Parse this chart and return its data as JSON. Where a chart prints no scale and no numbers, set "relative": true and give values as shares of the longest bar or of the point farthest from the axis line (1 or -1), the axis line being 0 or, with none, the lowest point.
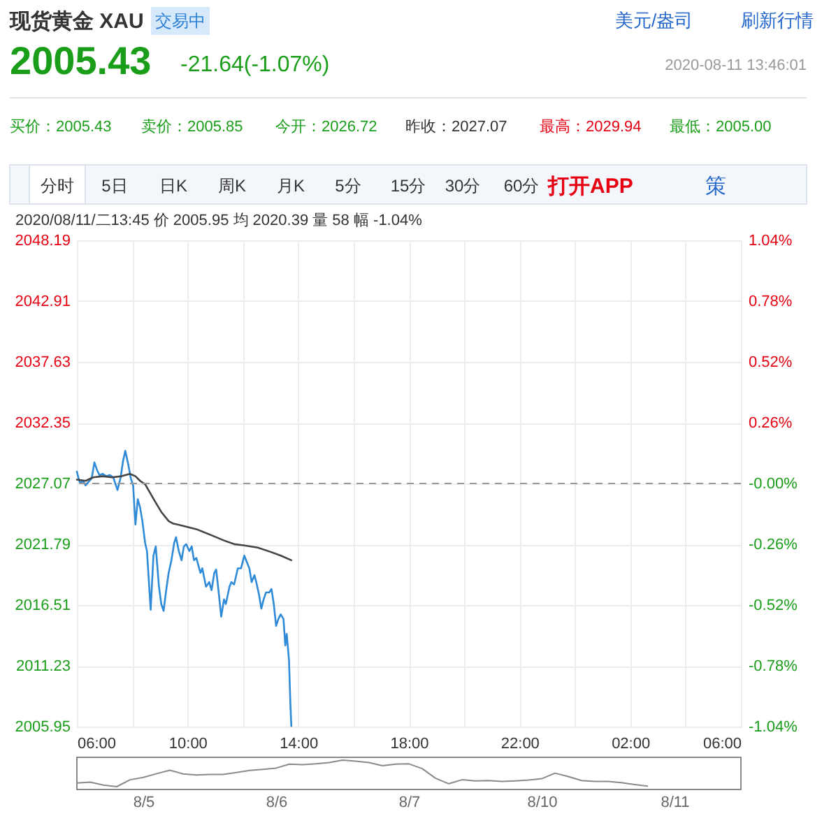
{
  "chart_data": [
    {
      "type": "line",
      "title": "现货黄金 XAU",
      "annotations": [
        "交易中",
        "美元/盎司",
        "刷新行情",
        "2005.43",
        "-21.64(-1.07%)",
        "2020-08-11 13:46:01",
        "买价：2005.43",
        "卖价：2005.85",
        "今开：2026.72",
        "昨收：2027.07",
        "最高：2029.94",
        "最低：2005.00",
        "分时",
        "5日",
        "日K",
        "周K",
        "月K",
        "5分",
        "15分",
        "30分",
        "60分",
        "打开APP",
        "策",
        "2020/08/11/二13:45 价 2005.95 均 2020.39 量 58 幅 -1.04%"
      ],
      "series": [
        {
          "color": "#2f8ad8",
          "x": [
            "2020-08-11T06:00",
            "2020-08-11T06:03",
            "2020-08-11T06:07",
            "2020-08-11T06:13",
            "2020-08-11T06:19",
            "2020-08-11T06:25",
            "2020-08-11T06:32",
            "2020-08-11T06:38",
            "2020-08-11T06:44",
            "2020-08-11T06:49",
            "2020-08-11T06:56",
            "2020-08-11T07:04",
            "2020-08-11T07:11",
            "2020-08-11T07:19",
            "2020-08-11T07:28",
            "2020-08-11T07:35",
            "2020-08-11T07:40",
            "2020-08-11T07:45",
            "2020-08-11T07:52",
            "2020-08-11T07:57",
            "2020-08-11T08:02",
            "2020-08-11T08:07",
            "2020-08-11T08:12",
            "2020-08-11T08:17",
            "2020-08-11T08:22",
            "2020-08-11T08:28",
            "2020-08-11T08:32",
            "2020-08-11T08:40",
            "2020-08-11T08:46",
            "2020-08-11T08:51",
            "2020-08-11T08:58",
            "2020-08-11T09:03",
            "2020-08-11T09:08",
            "2020-08-11T09:13",
            "2020-08-11T09:19",
            "2020-08-11T09:25",
            "2020-08-11T09:31",
            "2020-08-11T09:35",
            "2020-08-11T09:41",
            "2020-08-11T09:47",
            "2020-08-11T09:52",
            "2020-08-11T09:57",
            "2020-08-11T10:04",
            "2020-08-11T10:09",
            "2020-08-11T10:14",
            "2020-08-11T10:19",
            "2020-08-11T10:28",
            "2020-08-11T10:32",
            "2020-08-11T10:40",
            "2020-08-11T10:47",
            "2020-08-11T10:52",
            "2020-08-11T10:58",
            "2020-08-11T11:02",
            "2020-08-11T11:07",
            "2020-08-11T11:13",
            "2020-08-11T11:19",
            "2020-08-11T11:23",
            "2020-08-11T11:31",
            "2020-08-11T11:35",
            "2020-08-11T11:41",
            "2020-08-11T11:49",
            "2020-08-11T11:56",
            "2020-08-11T12:03",
            "2020-08-11T12:09",
            "2020-08-11T12:14",
            "2020-08-11T12:19",
            "2020-08-11T12:25",
            "2020-08-11T12:29",
            "2020-08-11T12:35",
            "2020-08-11T12:40",
            "2020-08-11T12:45",
            "2020-08-11T12:50",
            "2020-08-11T12:57",
            "2020-08-11T13:02",
            "2020-08-11T13:07",
            "2020-08-11T13:12",
            "2020-08-11T13:17",
            "2020-08-11T13:22",
            "2020-08-11T13:28",
            "2020-08-11T13:32",
            "2020-08-11T13:35",
            "2020-08-11T13:40",
            "2020-08-11T13:43",
            "2020-08-11T13:45"
          ],
          "values": [
            2028.1,
            2027.6,
            2027.1,
            2027.3,
            2026.9,
            2027.2,
            2027.5,
            2028.9,
            2028.2,
            2027.8,
            2027.9,
            2027.7,
            2027.8,
            2027.6,
            2026.5,
            2027.6,
            2029.0,
            2029.9,
            2028.6,
            2027.5,
            2026.9,
            2023.5,
            2025.7,
            2025.0,
            2023.8,
            2021.9,
            2021.2,
            2016.1,
            2020.8,
            2021.6,
            2018.1,
            2016.6,
            2016.0,
            2017.6,
            2019.3,
            2020.4,
            2021.9,
            2022.4,
            2021.2,
            2020.4,
            2021.6,
            2021.8,
            2021.2,
            2021.6,
            2020.4,
            2020.6,
            2019.3,
            2019.7,
            2018.1,
            2018.5,
            2017.8,
            2019.3,
            2019.6,
            2017.8,
            2015.5,
            2017.0,
            2016.6,
            2018.1,
            2018.5,
            2018.3,
            2019.7,
            2019.7,
            2020.8,
            2020.2,
            2019.7,
            2018.5,
            2019.1,
            2018.5,
            2017.4,
            2016.2,
            2017.0,
            2017.6,
            2017.6,
            2017.9,
            2016.6,
            2014.7,
            2015.3,
            2015.7,
            2015.3,
            2013.0,
            2014.0,
            2011.7,
            2007.9,
            2006.0
          ]
        },
        {
          "color": "#444444",
          "x": [
            "2020-08-11T06:00",
            "2020-08-11T06:19",
            "2020-08-11T06:35",
            "2020-08-11T06:56",
            "2020-08-11T07:16",
            "2020-08-11T07:37",
            "2020-08-11T07:55",
            "2020-08-11T08:07",
            "2020-08-11T08:17",
            "2020-08-11T08:28",
            "2020-08-11T08:38",
            "2020-08-11T08:48",
            "2020-08-11T09:03",
            "2020-08-11T09:19",
            "2020-08-11T09:28",
            "2020-08-11T09:49",
            "2020-08-11T10:19",
            "2020-08-11T10:50",
            "2020-08-11T11:20",
            "2020-08-11T11:41",
            "2020-08-11T12:01",
            "2020-08-11T12:32",
            "2020-08-11T13:02",
            "2020-08-11T13:22",
            "2020-08-11T13:45"
          ],
          "values": [
            2027.4,
            2027.3,
            2027.6,
            2027.7,
            2027.6,
            2027.7,
            2027.9,
            2027.7,
            2027.3,
            2027.0,
            2026.3,
            2025.6,
            2024.6,
            2023.8,
            2023.6,
            2023.4,
            2023.1,
            2022.6,
            2022.1,
            2021.8,
            2021.7,
            2021.5,
            2021.1,
            2020.8,
            2020.4
          ]
        }
      ],
      "xlim": [
        "2020-08-11T06:00",
        "2020-08-12T06:00"
      ],
      "xticks": [
        {
          "value": "2020-08-11T06:00",
          "label": "06:00"
        },
        {
          "value": "2020-08-11T08:00",
          "label": null
        },
        {
          "value": "2020-08-11T10:00",
          "label": "10:00"
        },
        {
          "value": "2020-08-11T12:00",
          "label": null
        },
        {
          "value": "2020-08-11T14:00",
          "label": "14:00"
        },
        {
          "value": "2020-08-11T16:00",
          "label": null
        },
        {
          "value": "2020-08-11T18:00",
          "label": "18:00"
        },
        {
          "value": "2020-08-11T20:00",
          "label": null
        },
        {
          "value": "2020-08-11T22:00",
          "label": "22:00"
        },
        {
          "value": "2020-08-12T00:00",
          "label": null
        },
        {
          "value": "2020-08-12T02:00",
          "label": "02:00"
        },
        {
          "value": "2020-08-12T04:00",
          "label": null
        },
        {
          "value": "2020-08-12T06:00",
          "label": "06:00"
        }
      ],
      "ylim": [
        2005.95,
        2048.19
      ],
      "yticks": [
        2005.95,
        2011.23,
        2016.51,
        2021.79,
        2027.07,
        2032.35,
        2037.63,
        2042.91,
        2048.19
      ],
      "y2lim": [
        -1.04,
        1.04
      ],
      "y2ticks": [
        {
          "value": -1.04,
          "label": "-1.04%"
        },
        {
          "value": -0.78,
          "label": "-0.78%"
        },
        {
          "value": -0.52,
          "label": "-0.52%"
        },
        {
          "value": -0.26,
          "label": "-0.26%"
        },
        {
          "value": 0,
          "label": "-0.00%"
        },
        {
          "value": 0.26,
          "label": "0.26%"
        },
        {
          "value": 0.52,
          "label": "0.52%"
        },
        {
          "value": 0.78,
          "label": "0.78%"
        },
        {
          "value": 1.04,
          "label": "1.04%"
        }
      ],
      "grid": true,
      "ref_lines": [
        {
          "axis": "y2",
          "value": 0,
          "color": "#999999",
          "line_style": "dashed"
        }
      ]
    },
    {
      "type": "line",
      "relative": true,
      "tick_labels": "x",
      "categories": [
        null,
        null,
        null,
        null,
        null,
        "8/5",
        null,
        null,
        null,
        null,
        null,
        null,
        null,
        null,
        null,
        "8/6",
        null,
        null,
        null,
        null,
        null,
        null,
        null,
        null,
        null,
        "8/7",
        null,
        null,
        null,
        null,
        null,
        null,
        null,
        null,
        null,
        "8/10",
        null,
        null,
        null,
        null,
        null,
        null,
        null,
        null,
        null,
        "8/11",
        null,
        null,
        null,
        null,
        null
      ],
      "series": [
        {
          "color": "#8a8a8a",
          "values": [
            0.14,
            0.17,
            0.06,
            0,
            0.26,
            0.35,
            0.49,
            0.62,
            0.48,
            0.44,
            0.46,
            0.46,
            0.53,
            0.61,
            0.65,
            0.7,
            0.85,
            0.83,
            0.86,
            0.91,
            1,
            0.96,
            0.91,
            0.79,
            0.85,
            0.86,
            0.68,
            0.32,
            0.11,
            0.26,
            0.22,
            0.23,
            0.2,
            0.22,
            0.25,
            0.3,
            0.51,
            0.38,
            0.23,
            0.2,
            0.2,
            0.15,
            0.08,
            0.02,
            null,
            null,
            null,
            null,
            null,
            null,
            null
          ]
        }
      ]
    }
  ]
}
